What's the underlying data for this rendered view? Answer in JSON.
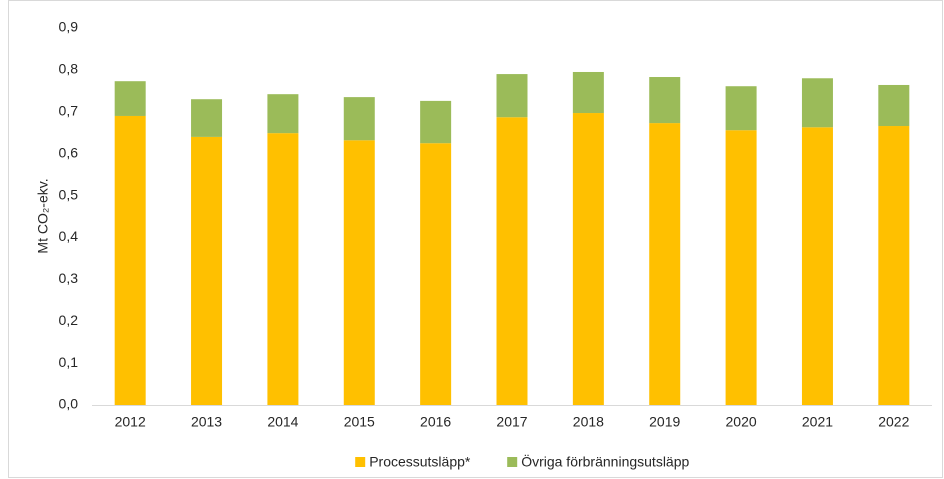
{
  "chart_data": {
    "type": "stacked_bar",
    "y_label": "Mt CO₂-ekv.",
    "categories": [
      "2012",
      "2013",
      "2014",
      "2015",
      "2016",
      "2017",
      "2018",
      "2019",
      "2020",
      "2021",
      "2022"
    ],
    "series": [
      {
        "name": "Processutsläpp*",
        "color": "#ffc000",
        "values": [
          0.69,
          0.64,
          0.649,
          0.632,
          0.625,
          0.687,
          0.697,
          0.673,
          0.656,
          0.663,
          0.666
        ]
      },
      {
        "name": "Övriga förbränningsutsläpp",
        "color": "#9bbb59",
        "values": [
          0.083,
          0.09,
          0.093,
          0.103,
          0.101,
          0.103,
          0.098,
          0.11,
          0.105,
          0.117,
          0.098
        ]
      }
    ],
    "ylim": [
      0,
      0.9
    ],
    "yticks": [
      {
        "value": 0,
        "label": "0,0"
      },
      {
        "value": 0.1,
        "label": "0,1"
      },
      {
        "value": 0.2,
        "label": "0,2"
      },
      {
        "value": 0.3,
        "label": "0,3"
      },
      {
        "value": 0.4,
        "label": "0,4"
      },
      {
        "value": 0.5,
        "label": "0,5"
      },
      {
        "value": 0.6,
        "label": "0,6"
      },
      {
        "value": 0.7,
        "label": "0,7"
      },
      {
        "value": 0.8,
        "label": "0,8"
      },
      {
        "value": 0.9,
        "label": "0,9"
      }
    ],
    "grid": false,
    "legend": "bottom"
  }
}
